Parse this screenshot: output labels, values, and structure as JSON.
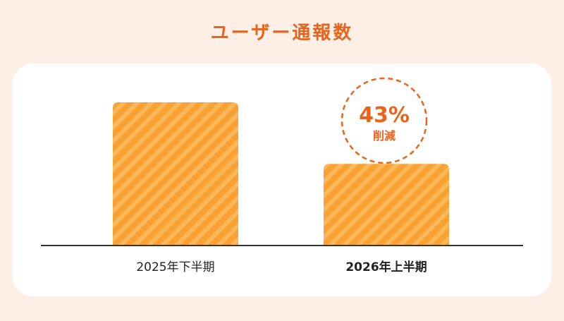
{
  "colors": {
    "background": "#fdeee6",
    "card": "#ffffff",
    "accent": "#e8641c",
    "bar_base": "#f9a234",
    "bar_stripe": "#fbb758",
    "axis": "#333333"
  },
  "chart_data": {
    "type": "bar",
    "title": "ユーザー通報数",
    "categories": [
      "2025年下半期",
      "2026年上半期"
    ],
    "values": [
      100,
      57
    ],
    "ylim": [
      0,
      100
    ],
    "grid": false,
    "annotation": {
      "category_index": 1,
      "value": "43%",
      "label": "削減"
    }
  }
}
